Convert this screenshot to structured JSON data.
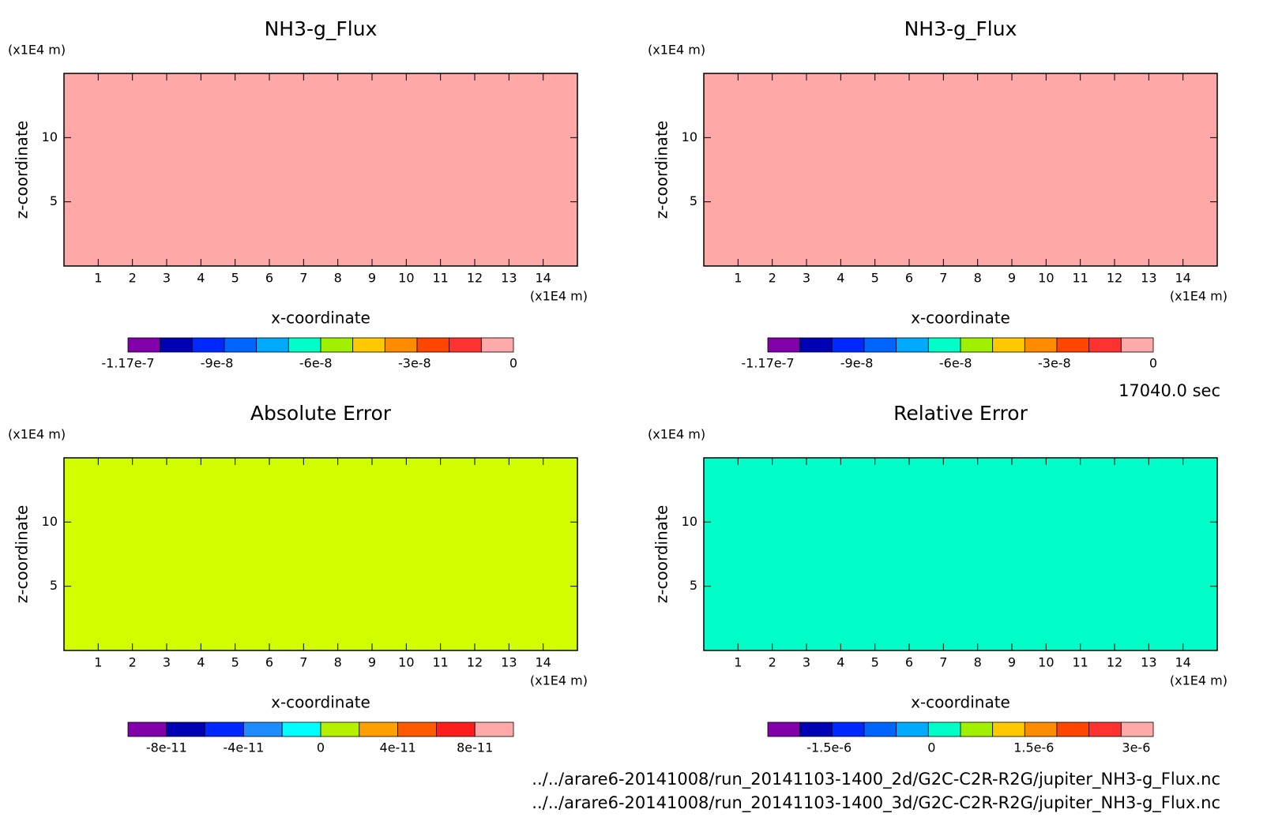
{
  "chart_data": [
    {
      "type": "contour",
      "title": "NH3-g_Flux",
      "xlabel": "x-coordinate",
      "ylabel": "z-coordinate",
      "x_unit": "(x1E4 m)",
      "y_unit": "(x1E4 m)",
      "xlim": [
        0,
        15
      ],
      "xticks": [
        1,
        2,
        3,
        4,
        5,
        6,
        7,
        8,
        9,
        10,
        11,
        12,
        13,
        14
      ],
      "ylim": [
        0,
        15
      ],
      "yticks": [
        5,
        10
      ],
      "fill_color": "#ffa8a8",
      "colorbar": {
        "lim": [
          -1.17e-07,
          0
        ],
        "ticks": [
          -1.17e-07,
          -9e-08,
          -6e-08,
          -3e-08,
          0
        ],
        "colors": [
          "#8200aa",
          "#0000b4",
          "#0028ff",
          "#0064ff",
          "#00aaff",
          "#00ffc8",
          "#a0f000",
          "#ffc800",
          "#ff8c00",
          "#ff4600",
          "#ff3232",
          "#ffaaaa"
        ]
      }
    },
    {
      "type": "contour",
      "title": "NH3-g_Flux",
      "xlabel": "x-coordinate",
      "ylabel": "z-coordinate",
      "x_unit": "(x1E4 m)",
      "y_unit": "(x1E4 m)",
      "xlim": [
        0,
        15
      ],
      "xticks": [
        1,
        2,
        3,
        4,
        5,
        6,
        7,
        8,
        9,
        10,
        11,
        12,
        13,
        14
      ],
      "ylim": [
        0,
        15
      ],
      "yticks": [
        5,
        10
      ],
      "fill_color": "#ffa8a8",
      "colorbar": {
        "lim": [
          -1.17e-07,
          0
        ],
        "ticks": [
          -1.17e-07,
          -9e-08,
          -6e-08,
          -3e-08,
          0
        ],
        "colors": [
          "#8200aa",
          "#0000b4",
          "#0028ff",
          "#0064ff",
          "#00aaff",
          "#00ffc8",
          "#a0f000",
          "#ffc800",
          "#ff8c00",
          "#ff4600",
          "#ff3232",
          "#ffaaaa"
        ]
      }
    },
    {
      "type": "contour",
      "title": "Absolute Error",
      "xlabel": "x-coordinate",
      "ylabel": "z-coordinate",
      "x_unit": "(x1E4 m)",
      "y_unit": "(x1E4 m)",
      "xlim": [
        0,
        15
      ],
      "xticks": [
        1,
        2,
        3,
        4,
        5,
        6,
        7,
        8,
        9,
        10,
        11,
        12,
        13,
        14
      ],
      "ylim": [
        0,
        15
      ],
      "yticks": [
        5,
        10
      ],
      "fill_color": "#d2ff00",
      "colorbar": {
        "lim": [
          -1e-10,
          1e-10
        ],
        "ticks": [
          -8e-11,
          -4e-11,
          0,
          4e-11,
          8e-11
        ],
        "colors": [
          "#8200aa",
          "#0000b4",
          "#0028ff",
          "#1e8cff",
          "#00ffff",
          "#b4f000",
          "#ffa000",
          "#ff5a00",
          "#ff1e1e",
          "#ffaaaa"
        ]
      }
    },
    {
      "type": "contour",
      "title": "Relative Error",
      "xlabel": "x-coordinate",
      "ylabel": "z-coordinate",
      "x_unit": "(x1E4 m)",
      "y_unit": "(x1E4 m)",
      "xlim": [
        0,
        15
      ],
      "xticks": [
        1,
        2,
        3,
        4,
        5,
        6,
        7,
        8,
        9,
        10,
        11,
        12,
        13,
        14
      ],
      "ylim": [
        0,
        15
      ],
      "yticks": [
        5,
        10
      ],
      "fill_color": "#00ffc8",
      "colorbar": {
        "lim": [
          -2.4e-06,
          3.25e-06
        ],
        "ticks": [
          {
            "value": -1.5e-06,
            "label": "-1.5e-6"
          },
          0,
          {
            "value": 1.5e-06,
            "label": "1.5e-6"
          },
          {
            "value": 3e-06,
            "label": "3e-6"
          }
        ],
        "colors": [
          "#8200aa",
          "#0000b4",
          "#0028ff",
          "#0064ff",
          "#00aaff",
          "#00ffc8",
          "#a0f000",
          "#ffc800",
          "#ff8c00",
          "#ff4600",
          "#ff3232",
          "#ffaaaa"
        ]
      }
    }
  ],
  "time_label": "17040.0 sec",
  "files": [
    "../../arare6-20141008/run_20141103-1400_2d/G2C-C2R-R2G/jupiter_NH3-g_Flux.nc",
    "../../arare6-20141008/run_20141103-1400_3d/G2C-C2R-R2G/jupiter_NH3-g_Flux.nc"
  ]
}
